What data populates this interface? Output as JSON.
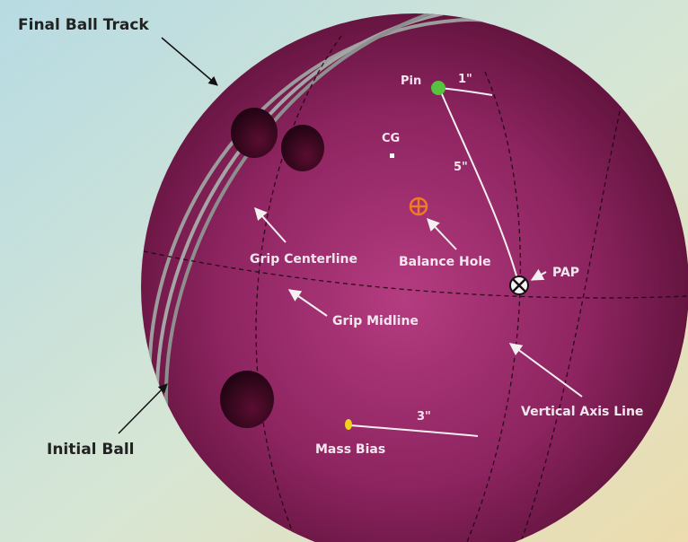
{
  "labels": {
    "final_ball_track": "Final Ball Track",
    "initial_ball": "Initial Ball",
    "pin": "Pin",
    "one_inch": "1\"",
    "five_inch": "5\"",
    "three_inch": "3\"",
    "cg": "CG",
    "balance_hole": "Balance Hole",
    "grip_centerline": "Grip Centerline",
    "grip_midline": "Grip Midline",
    "pap": "PAP",
    "vertical_axis_line": "Vertical Axis Line",
    "mass_bias": "Mass Bias"
  },
  "colors": {
    "ball_light": "#b23b7d",
    "ball_dark": "#4a0a2a",
    "track": "#9a9a9a",
    "pin": "#56c23d",
    "balance_hole": "#f07a26",
    "mass_bias": "#f3d11a",
    "background_left": "#b9dbe0",
    "background_right": "#ece3c2"
  }
}
